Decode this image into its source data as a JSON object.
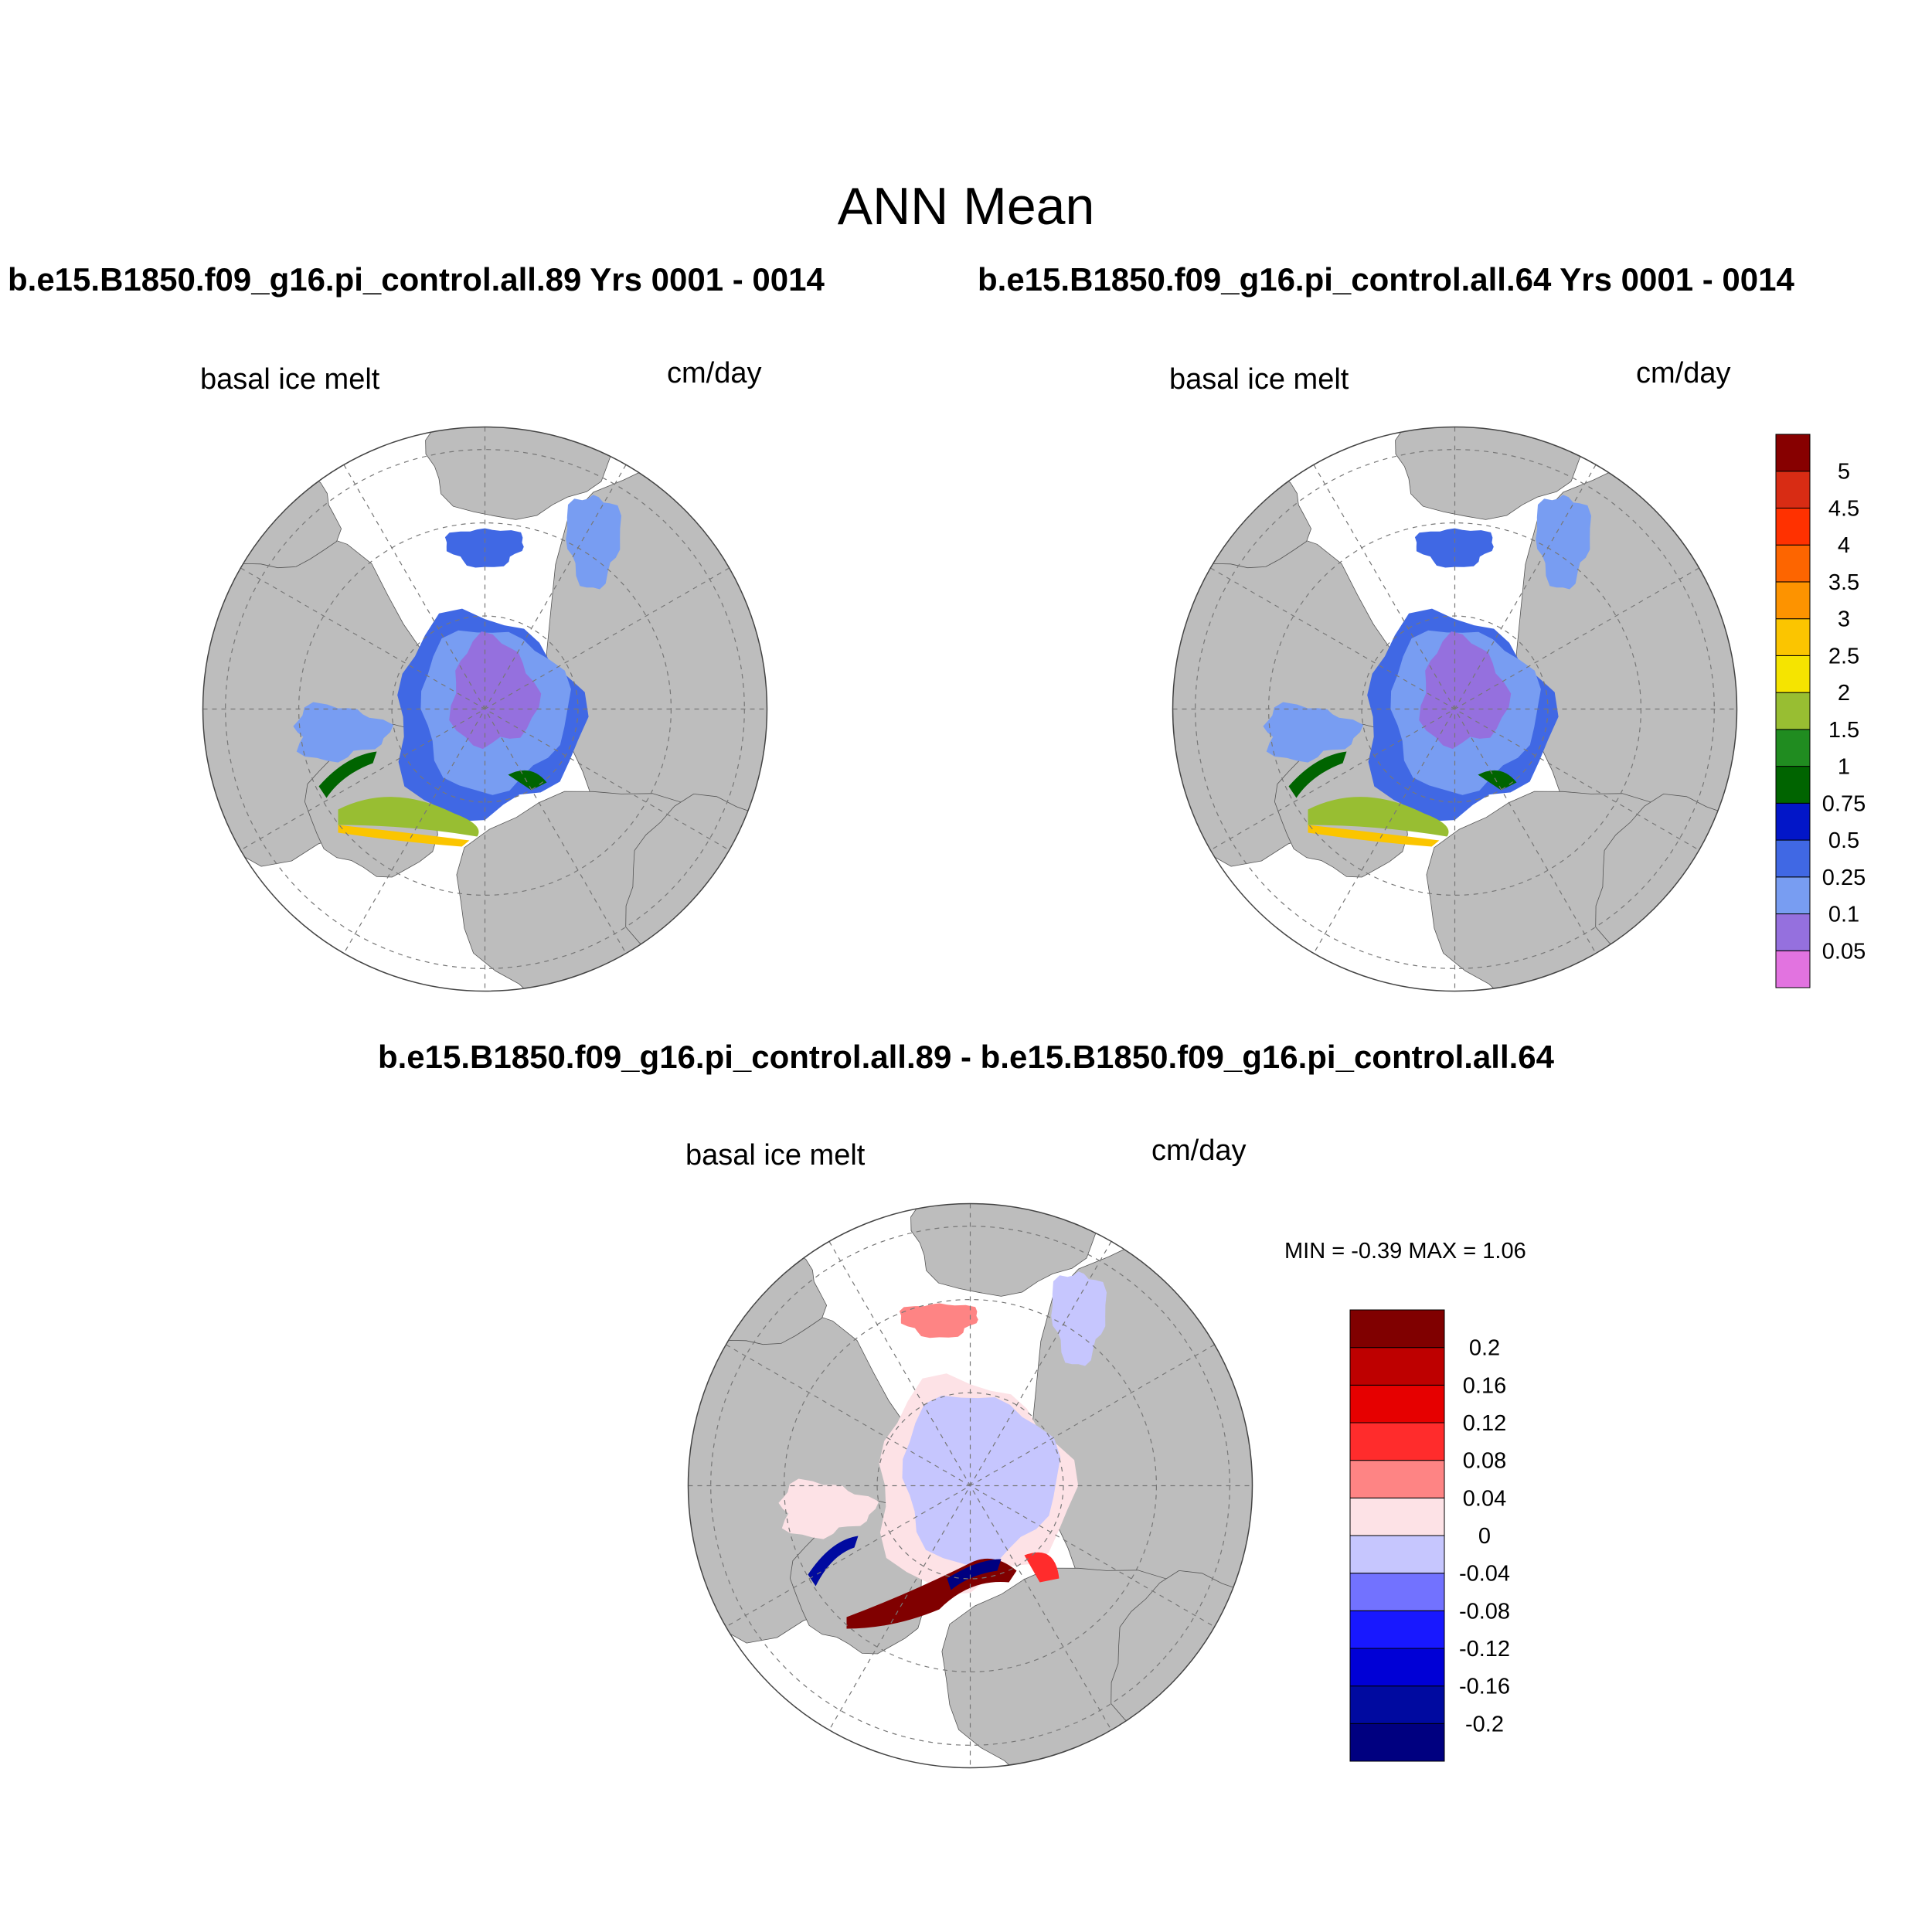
{
  "figure_title": "ANN Mean",
  "panels": [
    {
      "case_title": "b.e15.B1850.f09_g16.pi_control.all.89  Yrs 0001 - 0014",
      "variable_label": "basal ice melt",
      "units_label": "cm/day"
    },
    {
      "case_title": "b.e15.B1850.f09_g16.pi_control.all.64  Yrs 0001 - 0014",
      "variable_label": "basal ice melt",
      "units_label": "cm/day"
    },
    {
      "case_title": "b.e15.B1850.f09_g16.pi_control.all.89 - b.e15.B1850.f09_g16.pi_control.all.64",
      "variable_label": "basal ice melt",
      "units_label": "cm/day",
      "min_max_text": "MIN =  -0.39 MAX =   1.06"
    }
  ],
  "colorbars": {
    "field": {
      "levels": [
        "0.05",
        "0.1",
        "0.25",
        "0.5",
        "0.75",
        "1",
        "1.5",
        "2",
        "2.5",
        "3",
        "3.5",
        "4",
        "4.5",
        "5"
      ],
      "colors": [
        "#e273e0",
        "#9570de",
        "#789df2",
        "#4068e4",
        "#0216c8",
        "#006400",
        "#208c20",
        "#98be32",
        "#f5e400",
        "#fbc500",
        "#fd9300",
        "#fd6500",
        "#ff3100",
        "#d82c14",
        "#870000"
      ]
    },
    "difference": {
      "levels": [
        "-0.2",
        "-0.16",
        "-0.12",
        "-0.08",
        "-0.04",
        "0",
        "0.04",
        "0.08",
        "0.12",
        "0.16",
        "0.2"
      ],
      "colors": [
        "#000080",
        "#000aa0",
        "#0000d6",
        "#1818ff",
        "#7272ff",
        "#c6c6fe",
        "#fde2e6",
        "#fe8484",
        "#ff2c2c",
        "#e60000",
        "#be0000",
        "#800000"
      ]
    }
  },
  "map_colors": {
    "land": "#bdbdbd",
    "ocean": "#ffffff"
  }
}
